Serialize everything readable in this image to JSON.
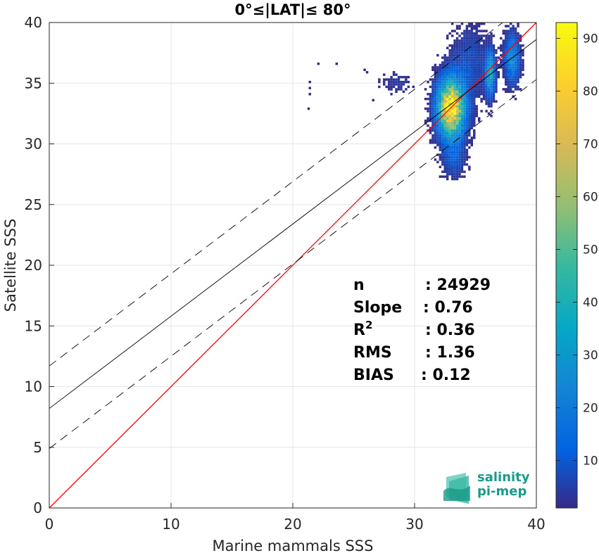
{
  "chart_data": {
    "type": "heatmap",
    "title": "0°≤|LAT|≤ 80°",
    "xlabel": "Marine mammals SSS",
    "ylabel": "Satellite SSS",
    "xlim": [
      0,
      40
    ],
    "ylim": [
      0,
      40
    ],
    "x_ticks": [
      "0",
      "10",
      "20",
      "30",
      "40"
    ],
    "y_ticks": [
      "0",
      "5",
      "10",
      "15",
      "20",
      "25",
      "30",
      "35",
      "40"
    ],
    "grid": true,
    "colorbar": {
      "range": [
        1,
        93
      ],
      "ticks": [
        "10",
        "20",
        "30",
        "40",
        "50",
        "60",
        "70",
        "80",
        "90"
      ],
      "colormap": "parula"
    },
    "lines": [
      {
        "kind": "identity",
        "slope": 1.0,
        "intercept": 0.0,
        "color": "#ff0000",
        "style": "solid"
      },
      {
        "kind": "fit",
        "slope": 0.76,
        "intercept": 8.2,
        "color": "#000000",
        "style": "solid"
      },
      {
        "kind": "fit-upper",
        "slope": 0.76,
        "intercept": 11.7,
        "color": "#000000",
        "style": "dashed"
      },
      {
        "kind": "fit-lower",
        "slope": 0.76,
        "intercept": 4.9,
        "color": "#000000",
        "style": "dashed"
      }
    ],
    "density_clusters": [
      {
        "x": 33.0,
        "y": 33.0,
        "sx": 0.7,
        "sy": 1.5,
        "peak": 93
      },
      {
        "x": 36.2,
        "y": 35.8,
        "sx": 0.25,
        "sy": 1.2,
        "peak": 35
      },
      {
        "x": 38.0,
        "y": 37.0,
        "sx": 0.4,
        "sy": 1.3,
        "peak": 25
      },
      {
        "x": 34.5,
        "y": 36.5,
        "sx": 1.0,
        "sy": 2.0,
        "peak": 8
      },
      {
        "x": 28.5,
        "y": 35.0,
        "sx": 0.8,
        "sy": 0.5,
        "peak": 4
      },
      {
        "x": 33.2,
        "y": 29.0,
        "sx": 0.6,
        "sy": 1.2,
        "peak": 10
      }
    ],
    "stats": [
      {
        "label": "n",
        "value": ": 24929"
      },
      {
        "label": "Slope",
        "value": ": 0.76"
      },
      {
        "label": "R",
        "sup": "2",
        "value": ": 0.36"
      },
      {
        "label": "RMS",
        "value": ": 1.36"
      },
      {
        "label": "BIAS",
        "value": ": 0.12"
      }
    ]
  },
  "logo": {
    "line1": "salinity",
    "line2": "pi-mep"
  }
}
